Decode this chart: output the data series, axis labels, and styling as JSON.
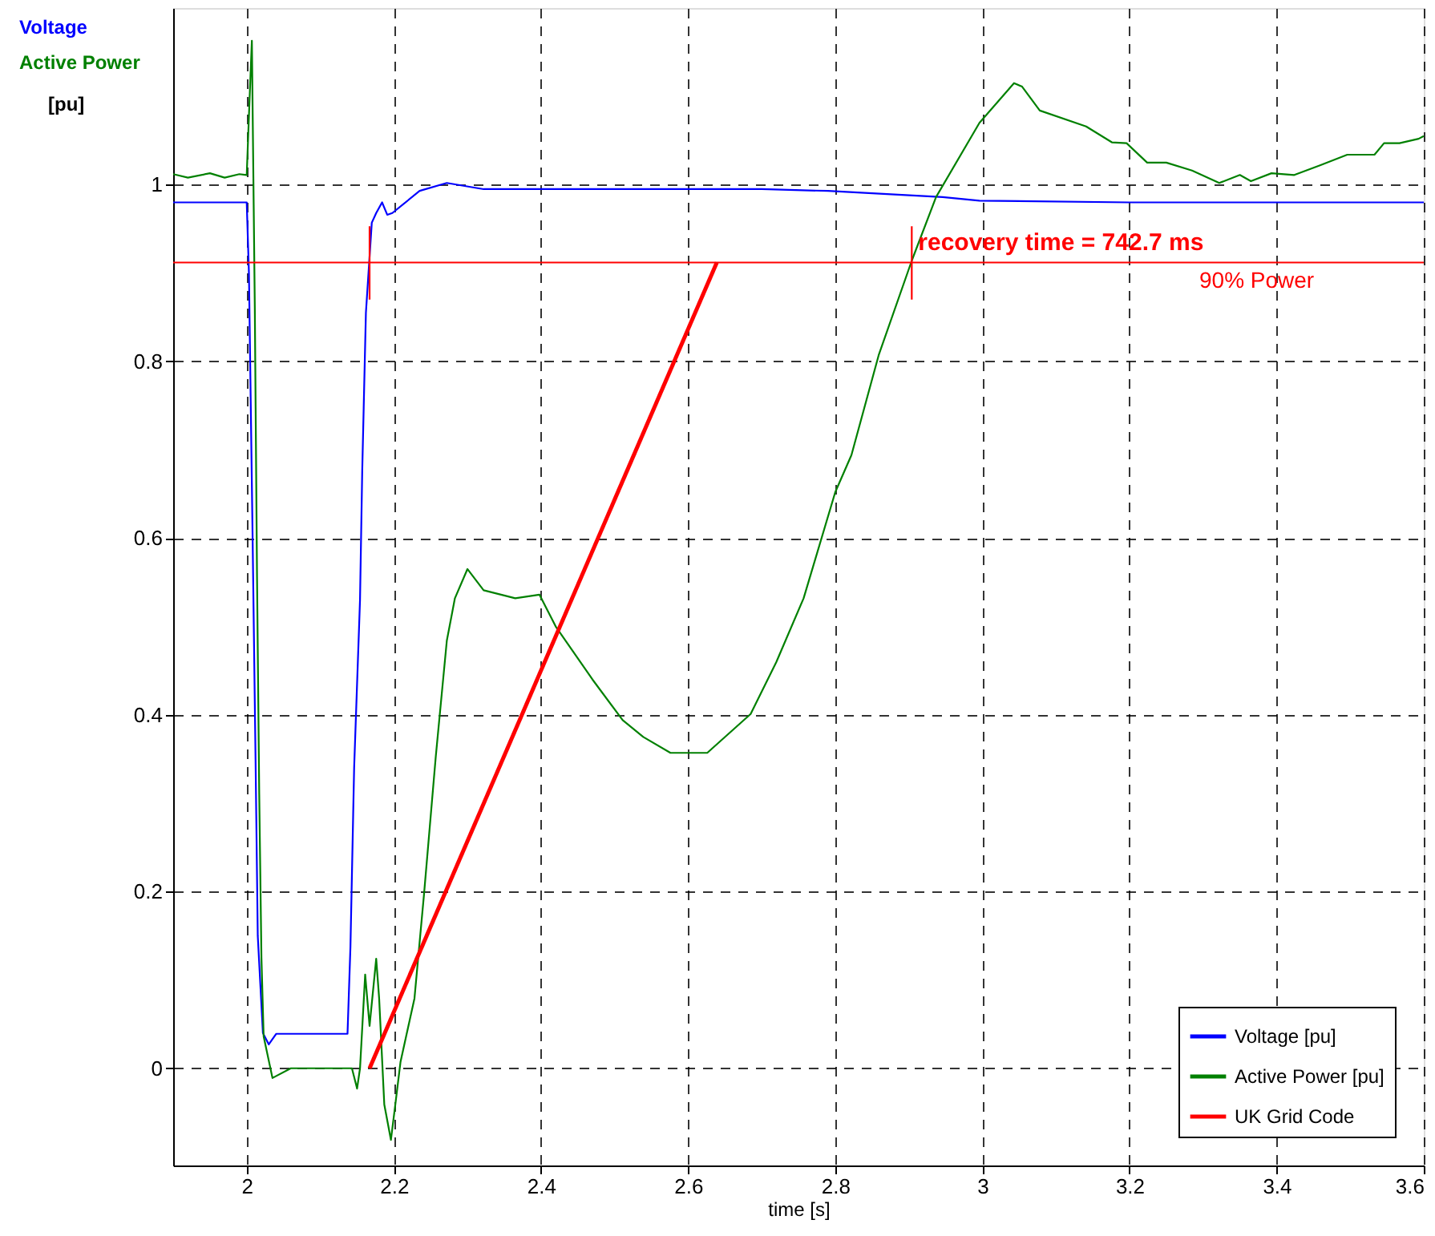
{
  "chart_data": {
    "type": "line",
    "xlabel": "time [s]",
    "ylabel": "[pu]",
    "xlim": [
      1.9,
      3.6
    ],
    "ylim": [
      -0.11,
      1.2
    ],
    "xticks": [
      2,
      2.2,
      2.4,
      2.6,
      2.8,
      3,
      3.2,
      3.4,
      3.6
    ],
    "yticks": [
      0,
      0.2,
      0.4,
      0.6,
      0.8,
      1
    ],
    "grid": true,
    "legend": "bottom right",
    "series": [
      {
        "name": "Voltage [pu]",
        "color": "#0000ff",
        "x": [
          1.9,
          2.0,
          2.003,
          2.008,
          2.012,
          2.015,
          2.022,
          2.03,
          2.04,
          2.137,
          2.141,
          2.146,
          2.154,
          2.157,
          2.162,
          2.17,
          2.176,
          2.184,
          2.191,
          2.198,
          2.235,
          2.272,
          2.322,
          2.5,
          2.7,
          2.79,
          2.946,
          2.996,
          3.2,
          3.4,
          3.6
        ],
        "values": [
          0.98,
          0.98,
          0.9,
          0.6,
          0.35,
          0.15,
          0.04,
          0.027,
          0.039,
          0.039,
          0.138,
          0.34,
          0.53,
          0.676,
          0.855,
          0.957,
          0.968,
          0.98,
          0.966,
          0.968,
          0.993,
          1.002,
          0.995,
          0.995,
          0.995,
          0.993,
          0.986,
          0.982,
          0.98,
          0.98,
          0.98
        ]
      },
      {
        "name": "Active Power [pu]",
        "color": "#008000",
        "x": [
          1.9,
          1.92,
          1.95,
          1.97,
          1.99,
          2.0,
          2.004,
          2.007,
          2.011,
          2.014,
          2.017,
          2.02,
          2.023,
          2.035,
          2.06,
          2.143,
          2.15,
          2.154,
          2.161,
          2.167,
          2.176,
          2.18,
          2.187,
          2.196,
          2.202,
          2.209,
          2.228,
          2.241,
          2.257,
          2.272,
          2.283,
          2.3,
          2.322,
          2.365,
          2.398,
          2.42,
          2.47,
          2.511,
          2.539,
          2.576,
          2.626,
          2.685,
          2.72,
          2.757,
          2.8,
          2.822,
          2.859,
          2.904,
          2.937,
          2.996,
          3.043,
          3.054,
          3.078,
          3.141,
          3.176,
          3.196,
          3.224,
          3.25,
          3.285,
          3.322,
          3.35,
          3.365,
          3.393,
          3.424,
          3.459,
          3.496,
          3.533,
          3.546,
          3.567,
          3.593,
          3.6
        ],
        "values": [
          1.012,
          1.008,
          1.013,
          1.008,
          1.012,
          1.011,
          1.1,
          1.163,
          0.86,
          0.556,
          0.31,
          0.125,
          0.036,
          -0.011,
          0.0,
          0.0,
          -0.023,
          0.0,
          0.106,
          0.048,
          0.124,
          0.079,
          -0.041,
          -0.081,
          -0.041,
          0.007,
          0.079,
          0.197,
          0.353,
          0.484,
          0.532,
          0.565,
          0.541,
          0.532,
          0.536,
          0.5,
          0.44,
          0.394,
          0.375,
          0.357,
          0.357,
          0.401,
          0.46,
          0.532,
          0.652,
          0.694,
          0.807,
          0.914,
          0.986,
          1.07,
          1.115,
          1.111,
          1.084,
          1.066,
          1.048,
          1.047,
          1.025,
          1.025,
          1.016,
          1.002,
          1.011,
          1.004,
          1.013,
          1.011,
          1.022,
          1.034,
          1.034,
          1.047,
          1.047,
          1.052,
          1.055
        ]
      },
      {
        "name": "UK Grid Code",
        "color": "#ff0000",
        "x": [
          2.167,
          2.639
        ],
        "values": [
          0.0,
          0.912
        ]
      },
      {
        "color": "#ff0000",
        "x": [
          2.167,
          2.167
        ],
        "values": [
          0.87,
          0.953
        ]
      },
      {
        "color": "#ff0000",
        "x": [
          2.904,
          2.904
        ],
        "values": [
          0.87,
          0.953
        ]
      }
    ],
    "ref_lines": [
      {
        "axis": "y",
        "value": 0.912,
        "label": "90% Power",
        "color": "#ff0000"
      }
    ],
    "annotations": [
      "Voltage",
      "Active Power",
      {
        "text": "recovery time = 742.7 ms",
        "x": 2.904,
        "y": 0.935
      }
    ]
  }
}
